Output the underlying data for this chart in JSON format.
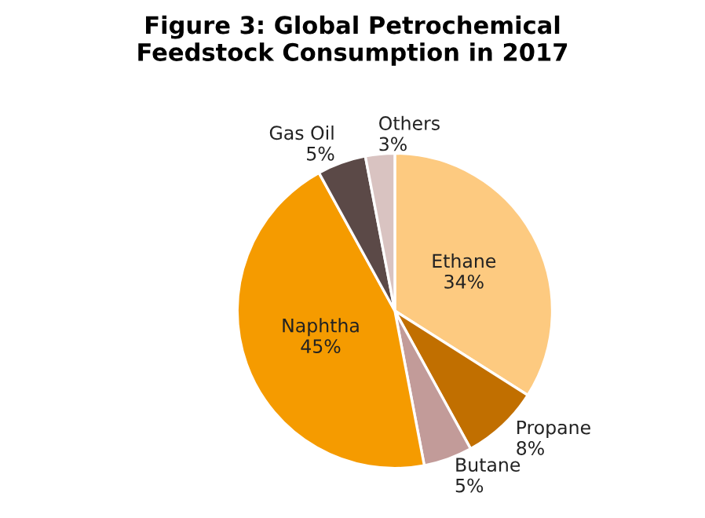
{
  "chart_data": {
    "type": "pie",
    "title": "Figure 3: Global Petrochemical\nFeedstock Consumption in 2017",
    "categories": [
      "Ethane",
      "Propane",
      "Butane",
      "Naphtha",
      "Gas Oil",
      "Others"
    ],
    "values": [
      34,
      8,
      5,
      45,
      5,
      3
    ],
    "value_labels": [
      "34%",
      "8%",
      "5%",
      "45%",
      "5%",
      "3%"
    ],
    "colors": [
      "#fdca80",
      "#c16f00",
      "#c29b99",
      "#f59b00",
      "#5b4947",
      "#d9c3c1"
    ],
    "legend": false
  }
}
